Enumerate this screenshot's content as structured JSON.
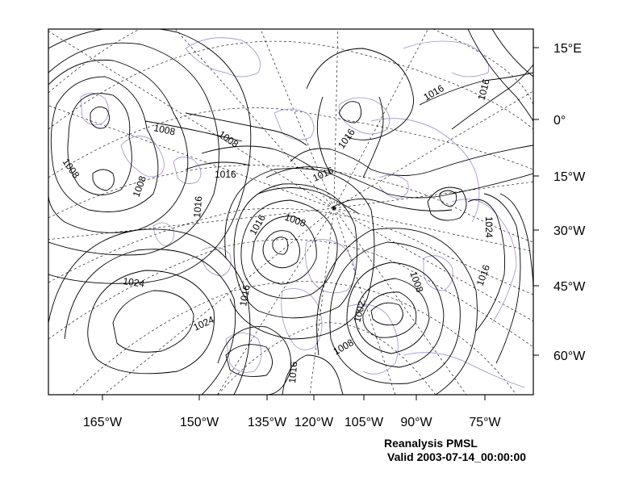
{
  "title": "Reanalysis PMSL",
  "valid_time": "Valid 2003-07-14_00:00:00",
  "bottom_axis_labels": [
    "165°W",
    "150°W",
    "135°W",
    "120°W",
    "105°W",
    "90°W",
    "75°W"
  ],
  "right_axis_labels": [
    "15°E",
    "0°",
    "15°W",
    "30°W",
    "45°W",
    "60°W"
  ],
  "contour_labels": [
    "1008",
    "1008",
    "1008",
    "1008",
    "1016",
    "1016",
    "1016",
    "1016",
    "1016",
    "1016",
    "1016",
    "1016",
    "1008",
    "1024",
    "1024",
    "1016",
    "1002",
    "1008",
    "1008",
    "1016",
    "1024",
    "1016"
  ],
  "colors": {
    "contour": "#000000",
    "coastline": "#a78bd0",
    "graticule": "#000000",
    "frame": "#000000"
  }
}
